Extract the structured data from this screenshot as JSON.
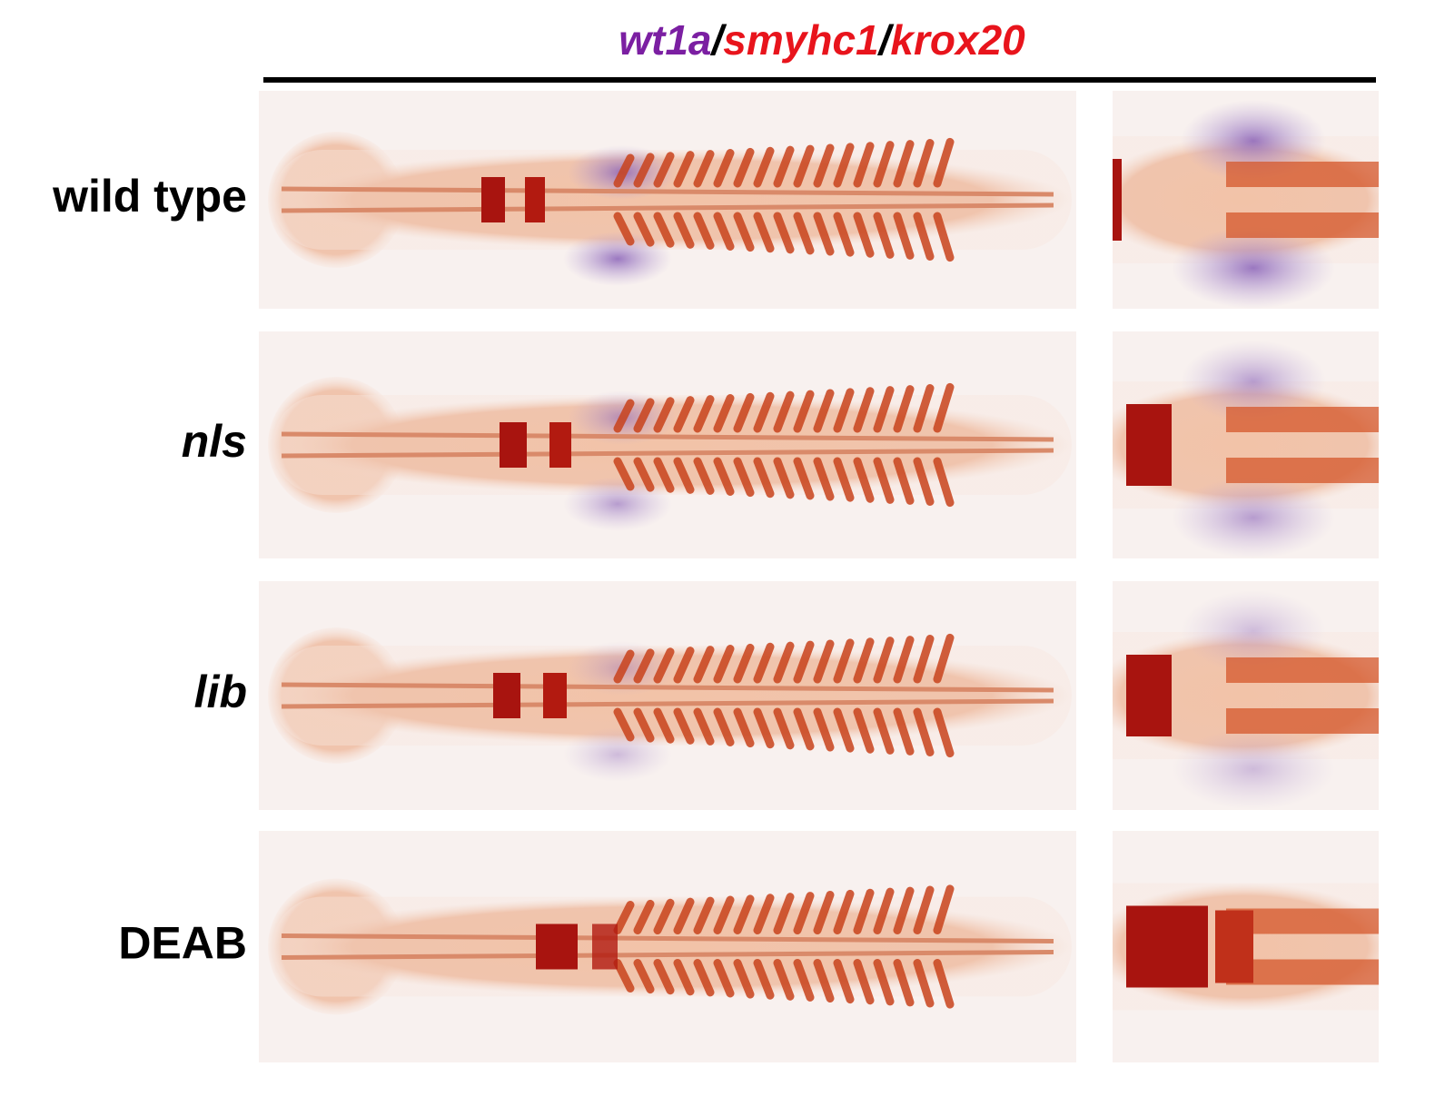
{
  "header": {
    "title_parts": [
      {
        "text": "wt1a",
        "color": "#7b1fa2"
      },
      {
        "text": "/",
        "color": "#000000"
      },
      {
        "text": "smyhc1",
        "color": "#e8141c"
      },
      {
        "text": "/",
        "color": "#000000"
      },
      {
        "text": "krox20",
        "color": "#e8141c"
      }
    ]
  },
  "rows": [
    {
      "label": "wild type",
      "italic": false
    },
    {
      "label": "nls",
      "italic": true
    },
    {
      "label": "lib",
      "italic": true
    },
    {
      "label": "DEAB",
      "italic": false
    }
  ]
}
